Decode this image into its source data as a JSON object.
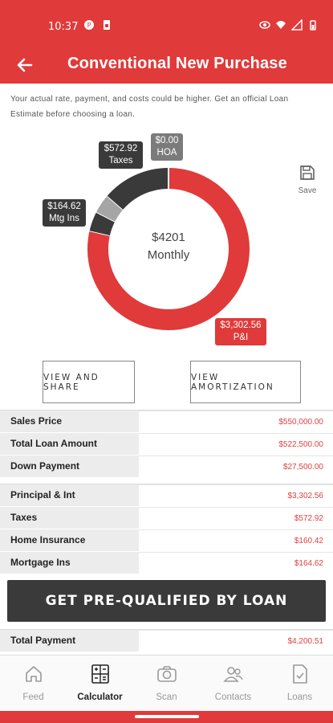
{
  "status_bar": {
    "time": "10:37"
  },
  "app_bar": {
    "title": "Conventional New Purchase"
  },
  "disclaimer": "Your actual rate, payment, and costs could be higher. Get an official Loan Estimate before choosing a loan.",
  "chart_data": {
    "type": "pie",
    "style": "donut",
    "center_amount": "$4201",
    "center_label": "Monthly",
    "slices": [
      {
        "label": "P&I",
        "value": 3302.56,
        "display": "$3,302.56",
        "color": "#e03a3a"
      },
      {
        "label": "Mtg Ins",
        "value": 164.62,
        "display": "$164.62",
        "color": "#3a3a3a"
      },
      {
        "label": "Home Insurance",
        "value": 160.42,
        "display": "",
        "color": "#a5a5a5"
      },
      {
        "label": "Taxes",
        "value": 572.92,
        "display": "$572.92",
        "color": "#3a3a3a"
      },
      {
        "label": "HOA",
        "value": 0.0,
        "display": "$0.00",
        "color": "#7b7b7b"
      }
    ]
  },
  "save": {
    "label": "Save"
  },
  "buttons": {
    "view_share": "VIEW AND SHARE",
    "view_amortization": "VIEW AMORTIZATION"
  },
  "loan_table": [
    {
      "label": "Sales Price",
      "value": "$550,000.00"
    },
    {
      "label": "Total Loan Amount",
      "value": "$522,500.00"
    },
    {
      "label": "Down Payment",
      "value": "$27,500.00"
    }
  ],
  "payment_table": [
    {
      "label": "Principal & Int",
      "value": "$3,302.56"
    },
    {
      "label": "Taxes",
      "value": "$572.92"
    },
    {
      "label": "Home Insurance",
      "value": "$160.42"
    },
    {
      "label": "Mortgage Ins",
      "value": "$164.62"
    }
  ],
  "cta": {
    "label": "GET PRE-QUALIFIED BY LOAN"
  },
  "total_table": [
    {
      "label": "Total Payment",
      "value": "$4,200.51"
    }
  ],
  "nav": {
    "items": [
      {
        "label": "Feed",
        "icon": "home-icon",
        "active": false
      },
      {
        "label": "Calculator",
        "icon": "calculator-icon",
        "active": true
      },
      {
        "label": "Scan",
        "icon": "camera-icon",
        "active": false
      },
      {
        "label": "Contacts",
        "icon": "contacts-icon",
        "active": false
      },
      {
        "label": "Loans",
        "icon": "document-icon",
        "active": false
      }
    ]
  },
  "colors": {
    "brand_red": "#e03a3a",
    "dark_gray": "#3a3a3a"
  }
}
